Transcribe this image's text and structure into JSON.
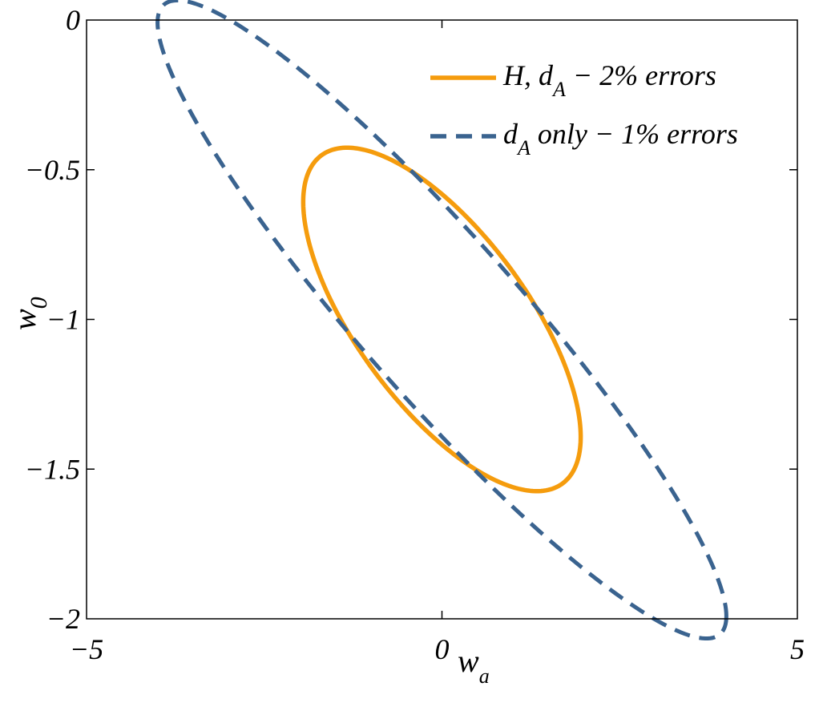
{
  "chart_data": {
    "type": "line",
    "xlabel": "w",
    "xlabel_sub": "a",
    "ylabel": "w",
    "ylabel_sub": "0",
    "xlim": [
      -5,
      5
    ],
    "ylim": [
      -2,
      0
    ],
    "xticks": [
      -5,
      0,
      5
    ],
    "xtick_labels": [
      "−5",
      "0",
      "5"
    ],
    "yticks": [
      0,
      -0.5,
      -1,
      -1.5,
      -2
    ],
    "ytick_labels": [
      "0",
      "−0.5",
      "−1",
      "−1.5",
      "−2"
    ],
    "grid": false,
    "legend_position": "top-right",
    "series": [
      {
        "name": "H, d_A − 2% errors",
        "legend_parts": [
          "H, d",
          "A",
          " − 2% errors"
        ],
        "style": "solid",
        "color": "#f59c0d",
        "shape": "ellipse",
        "center": [
          0,
          -1
        ],
        "endpoints": [
          [
            -1.95,
            -0.59
          ],
          [
            1.95,
            -1.41
          ]
        ],
        "minor_half_width": 0.41
      },
      {
        "name": "d_A only − 1% errors",
        "legend_parts": [
          "d",
          "A",
          " only − 1% errors"
        ],
        "style": "dashed",
        "color": "#3a638f",
        "shape": "ellipse",
        "center": [
          0,
          -1
        ],
        "endpoints": [
          [
            -4.0,
            0.0
          ],
          [
            4.0,
            -2.0
          ]
        ],
        "minor_half_width": 0.38
      }
    ]
  }
}
